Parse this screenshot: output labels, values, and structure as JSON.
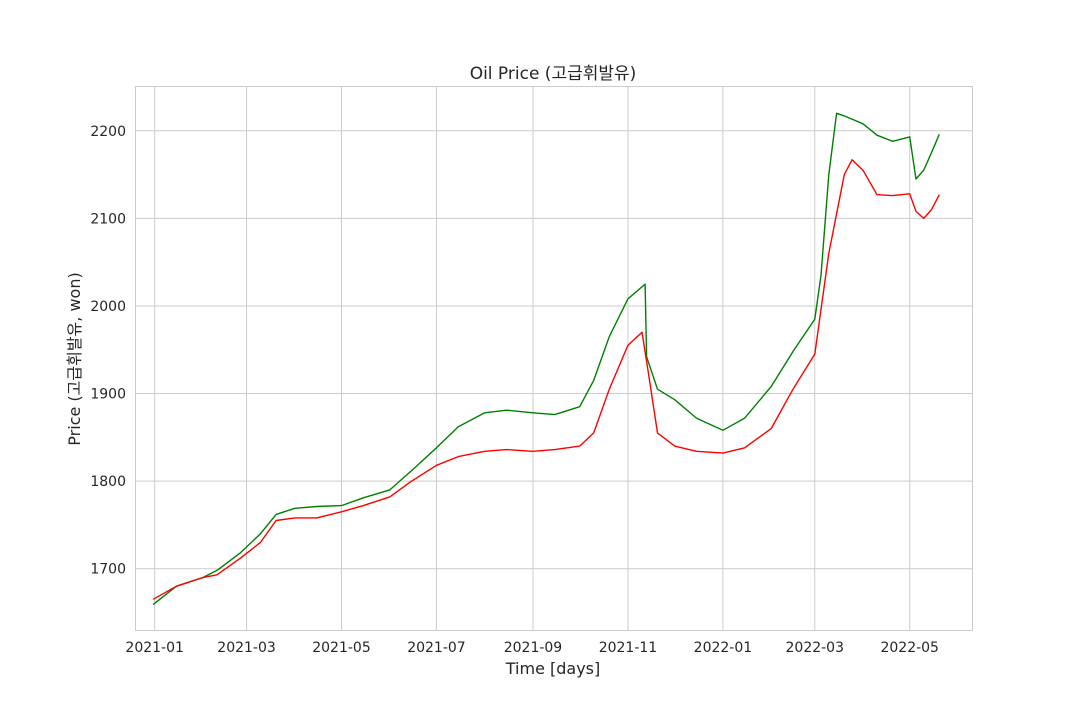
{
  "chart_data": {
    "type": "line",
    "title": "Oil Price (고급휘발유)",
    "xlabel": "Time [days]",
    "ylabel": "Price (고급휘발유, won)",
    "x_ticks": [
      "2021-01",
      "2021-03",
      "2021-05",
      "2021-07",
      "2021-09",
      "2021-11",
      "2022-01",
      "2022-03",
      "2022-05"
    ],
    "y_ticks": [
      1700,
      1800,
      1900,
      2000,
      2100,
      2200
    ],
    "xlim": [
      "2020-12-20",
      "2022-06-10"
    ],
    "ylim": [
      1630,
      2250
    ],
    "grid": true,
    "colors": {
      "green": "#008000",
      "red": "#ff0000",
      "grid": "#cccccc",
      "frame": "#cccccc",
      "text": "#262626"
    },
    "series": [
      {
        "color": "#008000",
        "x": [
          "2020-12-31",
          "2021-01-15",
          "2021-02-01",
          "2021-02-10",
          "2021-02-25",
          "2021-03-10",
          "2021-03-20",
          "2021-04-01",
          "2021-04-15",
          "2021-05-01",
          "2021-05-15",
          "2021-06-01",
          "2021-06-15",
          "2021-07-01",
          "2021-07-15",
          "2021-08-01",
          "2021-08-15",
          "2021-09-01",
          "2021-09-15",
          "2021-10-01",
          "2021-10-10",
          "2021-10-20",
          "2021-11-01",
          "2021-11-12",
          "2021-11-13",
          "2021-11-20",
          "2021-12-01",
          "2021-12-15",
          "2022-01-01",
          "2022-01-15",
          "2022-02-01",
          "2022-02-15",
          "2022-03-01",
          "2022-03-05",
          "2022-03-10",
          "2022-03-15",
          "2022-03-20",
          "2022-04-01",
          "2022-04-10",
          "2022-04-20",
          "2022-05-01",
          "2022-05-05",
          "2022-05-10",
          "2022-05-15",
          "2022-05-20"
        ],
        "y": [
          1659,
          1680,
          1690,
          1698,
          1718,
          1740,
          1762,
          1769,
          1771,
          1772,
          1781,
          1790,
          1812,
          1838,
          1862,
          1878,
          1881,
          1878,
          1876,
          1885,
          1915,
          1965,
          2008,
          2025,
          1942,
          1905,
          1893,
          1872,
          1858,
          1872,
          1908,
          1948,
          1985,
          2035,
          2150,
          2220,
          2217,
          2208,
          2195,
          2188,
          2193,
          2145,
          2155,
          2175,
          2196
        ]
      },
      {
        "color": "#ff0000",
        "x": [
          "2020-12-31",
          "2021-01-15",
          "2021-02-01",
          "2021-02-10",
          "2021-02-25",
          "2021-03-10",
          "2021-03-20",
          "2021-04-01",
          "2021-04-15",
          "2021-05-01",
          "2021-05-15",
          "2021-06-01",
          "2021-06-15",
          "2021-07-01",
          "2021-07-15",
          "2021-08-01",
          "2021-08-15",
          "2021-09-01",
          "2021-09-15",
          "2021-10-01",
          "2021-10-10",
          "2021-10-20",
          "2021-11-01",
          "2021-11-10",
          "2021-11-14",
          "2021-11-20",
          "2021-12-01",
          "2021-12-15",
          "2022-01-01",
          "2022-01-15",
          "2022-02-01",
          "2022-02-15",
          "2022-03-01",
          "2022-03-10",
          "2022-03-20",
          "2022-03-25",
          "2022-04-01",
          "2022-04-10",
          "2022-04-20",
          "2022-05-01",
          "2022-05-05",
          "2022-05-10",
          "2022-05-15",
          "2022-05-20"
        ],
        "y": [
          1665,
          1680,
          1690,
          1693,
          1712,
          1730,
          1755,
          1758,
          1758,
          1765,
          1772,
          1782,
          1800,
          1818,
          1828,
          1834,
          1836,
          1834,
          1836,
          1840,
          1855,
          1905,
          1955,
          1970,
          1925,
          1855,
          1840,
          1834,
          1832,
          1838,
          1860,
          1905,
          1945,
          2060,
          2150,
          2167,
          2155,
          2127,
          2126,
          2128,
          2108,
          2100,
          2110,
          2127
        ]
      }
    ]
  }
}
